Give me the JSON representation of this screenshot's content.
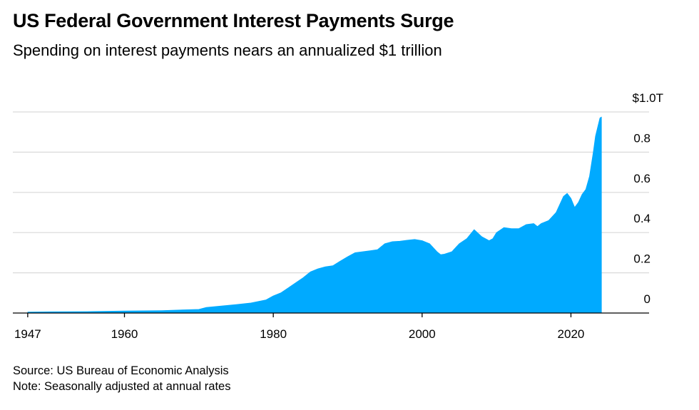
{
  "header": {
    "title": "US Federal Government Interest Payments Surge",
    "subtitle": "Spending on interest payments nears an annualized $1 trillion"
  },
  "footer": {
    "source": "Source: US Bureau of Economic Analysis",
    "note": "Note: Seasonally adjusted at annual rates"
  },
  "colors": {
    "area": "#00aaff",
    "grid": "#d9d9d9",
    "axis": "#000000"
  },
  "chart_data": {
    "type": "area",
    "title": "US Federal Government Interest Payments Surge",
    "subtitle": "Spending on interest payments nears an annualized $1 trillion",
    "xlabel": "",
    "ylabel": "",
    "xlim": [
      1945,
      2030.5
    ],
    "ylim": [
      0,
      1.0
    ],
    "x_ticks": [
      1947,
      1960,
      1980,
      2000,
      2020
    ],
    "y_ticks": [
      0,
      0.2,
      0.4,
      0.6,
      0.8,
      1.0
    ],
    "y_tick_labels": [
      "0",
      "0.2",
      "0.4",
      "0.6",
      "0.8",
      "$1.0T"
    ],
    "grid": "horizontal",
    "series": [
      {
        "x": [
          1947,
          1950,
          1955,
          1960,
          1965,
          1970,
          1971,
          1975,
          1977,
          1979,
          1980,
          1981,
          1982,
          1983,
          1984,
          1985,
          1986,
          1987,
          1988,
          1989,
          1990,
          1991,
          1992,
          1993,
          1994,
          1995,
          1996,
          1997,
          1998,
          1999,
          2000,
          2001,
          2002,
          2002.5,
          2003,
          2004,
          2005,
          2006,
          2007,
          2008,
          2009,
          2009.5,
          2010,
          2011,
          2012,
          2013,
          2014,
          2015,
          2015.5,
          2016,
          2017,
          2018,
          2019,
          2019.5,
          2020,
          2020.5,
          2021,
          2021.5,
          2022,
          2022.5,
          2023,
          2023.3,
          2023.6,
          2023.9,
          2024.1
        ],
        "y": [
          0.005,
          0.006,
          0.007,
          0.01,
          0.012,
          0.018,
          0.028,
          0.042,
          0.05,
          0.065,
          0.085,
          0.1,
          0.125,
          0.15,
          0.175,
          0.205,
          0.22,
          0.23,
          0.235,
          0.258,
          0.28,
          0.3,
          0.305,
          0.31,
          0.315,
          0.345,
          0.355,
          0.357,
          0.362,
          0.366,
          0.36,
          0.345,
          0.305,
          0.29,
          0.293,
          0.305,
          0.345,
          0.37,
          0.415,
          0.38,
          0.36,
          0.37,
          0.4,
          0.425,
          0.42,
          0.42,
          0.44,
          0.445,
          0.43,
          0.445,
          0.46,
          0.5,
          0.58,
          0.595,
          0.57,
          0.525,
          0.55,
          0.59,
          0.615,
          0.68,
          0.8,
          0.88,
          0.925,
          0.97,
          0.975
        ]
      }
    ]
  }
}
